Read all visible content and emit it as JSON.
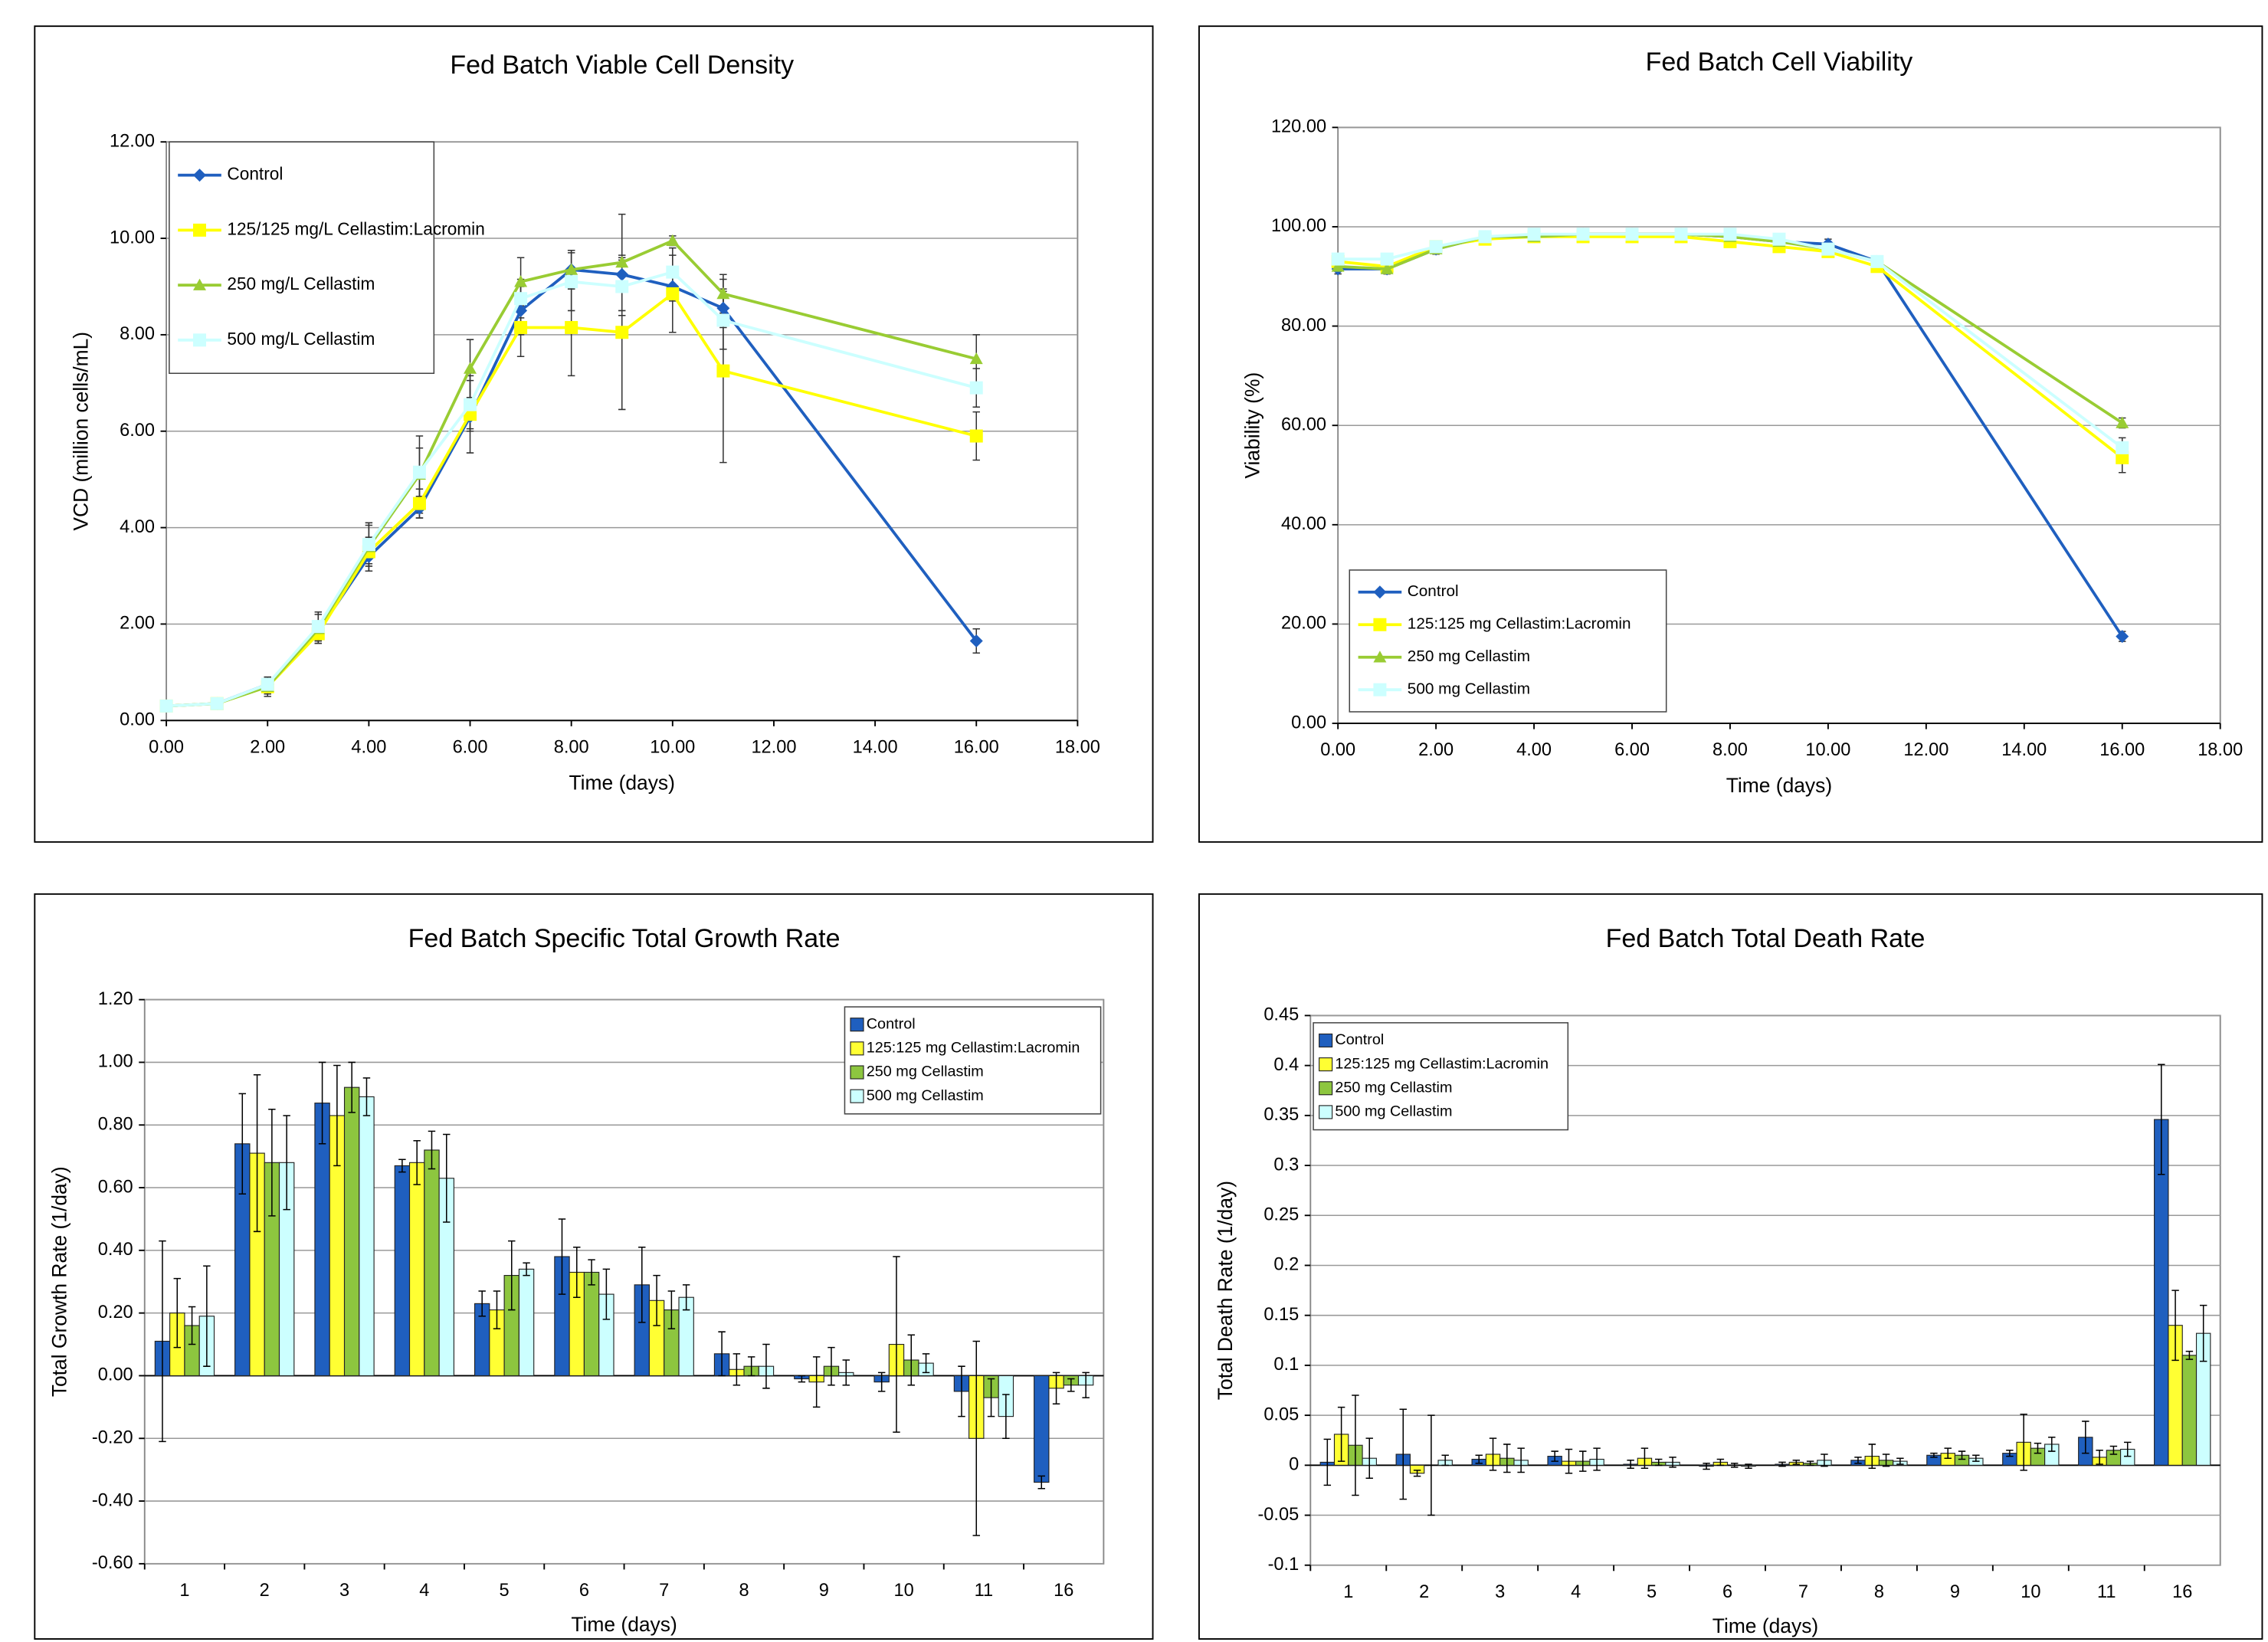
{
  "chart_data": [
    {
      "type": "line",
      "title": "Fed Batch Viable Cell Density",
      "x_label": "Time (days)",
      "y_label": "VCD (million cells/mL)",
      "x": [
        0,
        1,
        2,
        3,
        4,
        5,
        6,
        7,
        8,
        9,
        10,
        11,
        16
      ],
      "xlim": [
        0,
        18
      ],
      "ylim": [
        0,
        12
      ],
      "grid": true,
      "legend": "upper left",
      "xticks": [
        {
          "value": 0,
          "label": "0.00"
        },
        {
          "value": 2,
          "label": "2.00"
        },
        {
          "value": 4,
          "label": "4.00"
        },
        {
          "value": 6,
          "label": "6.00"
        },
        {
          "value": 8,
          "label": "8.00"
        },
        {
          "value": 10,
          "label": "10.00"
        },
        {
          "value": 12,
          "label": "12.00"
        },
        {
          "value": 14,
          "label": "14.00"
        },
        {
          "value": 16,
          "label": "16.00"
        },
        {
          "value": 18,
          "label": "18.00"
        }
      ],
      "yticks": [
        {
          "value": 0,
          "label": "0.00"
        },
        {
          "value": 2,
          "label": "2.00"
        },
        {
          "value": 4,
          "label": "4.00"
        },
        {
          "value": 6,
          "label": "6.00"
        },
        {
          "value": 8,
          "label": "8.00"
        },
        {
          "value": 10,
          "label": "10.00"
        },
        {
          "value": 12,
          "label": "12.00"
        }
      ],
      "series": [
        {
          "name": "Control",
          "color": "#1f5fbf",
          "marker": "diamond",
          "values": [
            0.3,
            0.35,
            0.75,
            1.85,
            3.4,
            4.4,
            6.3,
            8.5,
            9.35,
            9.25,
            9.0,
            8.55,
            1.65
          ],
          "errors": [
            0,
            0,
            0.15,
            0.2,
            0.3,
            0.2,
            0.3,
            0.5,
            0.4,
            0.3,
            0.3,
            0.4,
            0.25
          ]
        },
        {
          "name": "125/125 mg/L Cellastim:Lacromin",
          "color": "#ffff00",
          "marker": "square",
          "values": [
            0.3,
            0.35,
            0.7,
            1.8,
            3.5,
            4.5,
            6.35,
            8.15,
            8.15,
            8.05,
            8.85,
            7.25,
            5.9
          ],
          "errors": [
            0,
            0,
            0.15,
            0.2,
            0.3,
            0.3,
            0.8,
            0.6,
            1.0,
            1.6,
            0.8,
            1.9,
            0.5
          ]
        },
        {
          "name": "250 mg/L Cellastim",
          "color": "#99cc33",
          "marker": "triangle",
          "values": [
            0.3,
            0.35,
            0.7,
            1.9,
            3.6,
            5.1,
            7.3,
            9.1,
            9.35,
            9.5,
            9.95,
            8.85,
            7.5
          ],
          "errors": [
            0,
            0,
            0.2,
            0.3,
            0.5,
            0.8,
            0.6,
            0.5,
            0.4,
            1.0,
            0.1,
            0.4,
            0.5
          ]
        },
        {
          "name": "500 mg/L Cellastim",
          "color": "#ccffff",
          "marker": "square",
          "values": [
            0.3,
            0.35,
            0.75,
            1.95,
            3.65,
            5.15,
            6.55,
            8.75,
            9.1,
            9.0,
            9.3,
            8.3,
            6.9
          ],
          "errors": [
            0,
            0,
            0.1,
            0.3,
            0.4,
            0.5,
            0.5,
            0.4,
            0.6,
            0.6,
            0.5,
            0.6,
            0.4
          ]
        }
      ]
    },
    {
      "type": "line",
      "title": "Fed Batch Cell Viability",
      "x_label": "Time (days)",
      "y_label": "Viability (%)",
      "x": [
        0,
        1,
        2,
        3,
        4,
        5,
        6,
        7,
        8,
        9,
        10,
        11,
        16
      ],
      "xlim": [
        0,
        18
      ],
      "ylim": [
        0,
        120
      ],
      "grid": true,
      "legend": "lower left",
      "xticks": [
        {
          "value": 0,
          "label": "0.00"
        },
        {
          "value": 2,
          "label": "2.00"
        },
        {
          "value": 4,
          "label": "4.00"
        },
        {
          "value": 6,
          "label": "6.00"
        },
        {
          "value": 8,
          "label": "8.00"
        },
        {
          "value": 10,
          "label": "10.00"
        },
        {
          "value": 12,
          "label": "12.00"
        },
        {
          "value": 14,
          "label": "14.00"
        },
        {
          "value": 16,
          "label": "16.00"
        },
        {
          "value": 18,
          "label": "18.00"
        }
      ],
      "yticks": [
        {
          "value": 0,
          "label": "0.00"
        },
        {
          "value": 20,
          "label": "20.00"
        },
        {
          "value": 40,
          "label": "40.00"
        },
        {
          "value": 60,
          "label": "60.00"
        },
        {
          "value": 80,
          "label": "80.00"
        },
        {
          "value": 100,
          "label": "100.00"
        },
        {
          "value": 120,
          "label": "120.00"
        }
      ],
      "series": [
        {
          "name": "Control",
          "color": "#1f5fbf",
          "marker": "diamond",
          "values": [
            91.5,
            91.5,
            95.5,
            98,
            98,
            98.5,
            98.5,
            98.5,
            98,
            97,
            96.5,
            93,
            17.5
          ],
          "errors": [
            1,
            1,
            1,
            0.5,
            0.5,
            0.5,
            0.5,
            0.5,
            0.5,
            1,
            1,
            1,
            1
          ]
        },
        {
          "name": "125:125 mg Cellastim:Lacromin",
          "color": "#ffff00",
          "marker": "square",
          "values": [
            93,
            92,
            96,
            97.5,
            98,
            98,
            98,
            98,
            97,
            96,
            95,
            92,
            53.5
          ],
          "errors": [
            1,
            1,
            1,
            0.5,
            0.5,
            0.5,
            0.5,
            0.5,
            1,
            1,
            1,
            1,
            3
          ]
        },
        {
          "name": "250 mg Cellastim",
          "color": "#99cc33",
          "marker": "triangle",
          "values": [
            92,
            91.5,
            95.5,
            98,
            98,
            98.5,
            98.5,
            98.5,
            98,
            97,
            95.5,
            93,
            60.5
          ],
          "errors": [
            1,
            1,
            1,
            0.5,
            0.5,
            0.5,
            0.5,
            0.5,
            0.5,
            1,
            1,
            1,
            1
          ]
        },
        {
          "name": "500 mg Cellastim",
          "color": "#ccffff",
          "marker": "square",
          "values": [
            93.5,
            93.5,
            96,
            98,
            98.5,
            98.5,
            98.5,
            98.5,
            98.5,
            97.5,
            95.5,
            93,
            55.5
          ],
          "errors": [
            1,
            1,
            1,
            0.5,
            0.5,
            0.5,
            0.5,
            0.5,
            0.5,
            1,
            1,
            1,
            2
          ]
        }
      ]
    },
    {
      "type": "bar",
      "title": "Fed Batch Specific Total Growth Rate",
      "x_label": "Time (days)",
      "y_label": "Total Growth Rate (1/day)",
      "categories": [
        "1",
        "2",
        "3",
        "4",
        "5",
        "6",
        "7",
        "8",
        "9",
        "10",
        "11",
        "16"
      ],
      "ylim": [
        -0.6,
        1.2
      ],
      "grid": true,
      "legend": "upper right",
      "yticks": [
        {
          "value": -0.6,
          "label": "-0.60"
        },
        {
          "value": -0.4,
          "label": "-0.40"
        },
        {
          "value": -0.2,
          "label": "-0.20"
        },
        {
          "value": 0,
          "label": "0.00"
        },
        {
          "value": 0.2,
          "label": "0.20"
        },
        {
          "value": 0.4,
          "label": "0.40"
        },
        {
          "value": 0.6,
          "label": "0.60"
        },
        {
          "value": 0.8,
          "label": "0.80"
        },
        {
          "value": 1.0,
          "label": "1.00"
        },
        {
          "value": 1.2,
          "label": "1.20"
        }
      ],
      "series": [
        {
          "name": "Control",
          "color": "#1f5fbf",
          "values": [
            0.11,
            0.74,
            0.87,
            0.67,
            0.23,
            0.38,
            0.29,
            0.07,
            -0.01,
            -0.02,
            -0.05,
            -0.34
          ],
          "errors": [
            0.32,
            0.16,
            0.13,
            0.02,
            0.04,
            0.12,
            0.12,
            0.07,
            0.01,
            0.03,
            0.08,
            0.02
          ]
        },
        {
          "name": "125:125 mg Cellastim:Lacromin",
          "color": "#ffff33",
          "values": [
            0.2,
            0.71,
            0.83,
            0.68,
            0.21,
            0.33,
            0.24,
            0.02,
            -0.02,
            0.1,
            -0.2,
            -0.04
          ],
          "errors": [
            0.11,
            0.25,
            0.16,
            0.07,
            0.06,
            0.08,
            0.08,
            0.05,
            0.08,
            0.28,
            0.31,
            0.05
          ]
        },
        {
          "name": "250 mg Cellastim",
          "color": "#8dc63f",
          "values": [
            0.16,
            0.68,
            0.92,
            0.72,
            0.32,
            0.33,
            0.21,
            0.03,
            0.03,
            0.05,
            -0.07,
            -0.03
          ],
          "errors": [
            0.06,
            0.17,
            0.08,
            0.06,
            0.11,
            0.04,
            0.06,
            0.03,
            0.06,
            0.08,
            0.06,
            0.02
          ]
        },
        {
          "name": "500 mg Cellastim",
          "color": "#ccffff",
          "values": [
            0.19,
            0.68,
            0.89,
            0.63,
            0.34,
            0.26,
            0.25,
            0.03,
            0.01,
            0.04,
            -0.13,
            -0.03
          ],
          "errors": [
            0.16,
            0.15,
            0.06,
            0.14,
            0.02,
            0.08,
            0.04,
            0.07,
            0.04,
            0.03,
            0.07,
            0.04
          ]
        }
      ]
    },
    {
      "type": "bar",
      "title": "Fed Batch Total Death Rate",
      "x_label": "Time (days)",
      "y_label": "Total Death Rate (1/day)",
      "categories": [
        "1",
        "2",
        "3",
        "4",
        "5",
        "6",
        "7",
        "8",
        "9",
        "10",
        "11",
        "16"
      ],
      "ylim": [
        -0.1,
        0.45
      ],
      "grid": true,
      "legend": "upper left",
      "yticks": [
        -0.1,
        -0.05,
        0,
        0.05,
        0.1,
        0.15,
        0.2,
        0.25,
        0.3,
        0.35,
        0.4,
        0.45
      ],
      "series": [
        {
          "name": "Control",
          "color": "#1f5fbf",
          "values": [
            0.003,
            0.011,
            0.006,
            0.009,
            0.001,
            -0.001,
            0.001,
            0.005,
            0.01,
            0.012,
            0.028,
            0.346
          ],
          "errors": [
            0.023,
            0.045,
            0.004,
            0.005,
            0.004,
            0.003,
            0.002,
            0.003,
            0.002,
            0.003,
            0.016,
            0.055
          ]
        },
        {
          "name": "125:125 mg Cellastim:Lacromin",
          "color": "#ffff33",
          "values": [
            0.031,
            -0.008,
            0.011,
            0.004,
            0.007,
            0.003,
            0.003,
            0.009,
            0.012,
            0.023,
            0.008,
            0.14
          ],
          "errors": [
            0.027,
            0.003,
            0.016,
            0.012,
            0.01,
            0.003,
            0.002,
            0.012,
            0.005,
            0.028,
            0.007,
            0.035
          ]
        },
        {
          "name": "250 mg Cellastim",
          "color": "#8dc63f",
          "values": [
            0.02,
            0,
            0.007,
            0.004,
            0.003,
            0,
            0.002,
            0.005,
            0.01,
            0.017,
            0.015,
            0.11
          ],
          "errors": [
            0.05,
            0.05,
            0.014,
            0.01,
            0.003,
            0.002,
            0.002,
            0.006,
            0.004,
            0.005,
            0.004,
            0.004
          ]
        },
        {
          "name": "500 mg Cellastim",
          "color": "#ccffff",
          "values": [
            0.007,
            0.005,
            0.005,
            0.006,
            0.003,
            -0.001,
            0.005,
            0.004,
            0.007,
            0.021,
            0.016,
            0.132
          ],
          "errors": [
            0.02,
            0.005,
            0.012,
            0.011,
            0.005,
            0.002,
            0.006,
            0.003,
            0.003,
            0.007,
            0.007,
            0.028
          ]
        }
      ]
    }
  ]
}
